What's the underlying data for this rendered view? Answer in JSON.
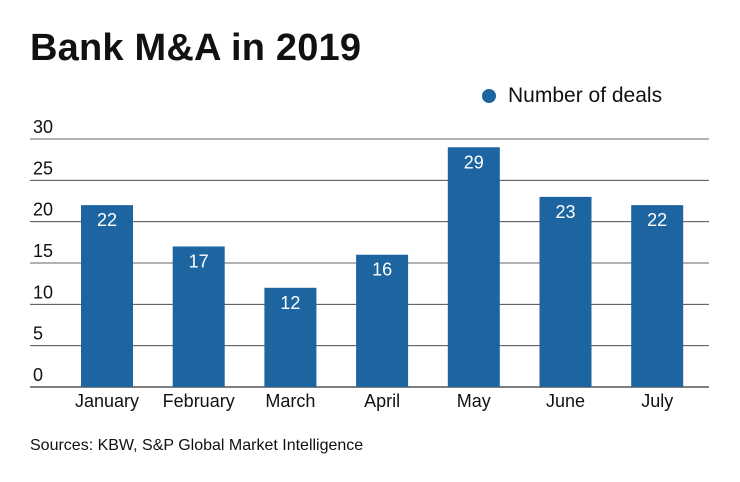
{
  "title": "Bank M&A in 2019",
  "source": "Sources: KBW, S&P Global Market Intelligence",
  "colors": {
    "bar": "#1d65a0",
    "grid": "#333333"
  },
  "chart_data": {
    "type": "bar",
    "title": "Bank M&A in 2019",
    "xlabel": "",
    "ylabel": "",
    "categories": [
      "January",
      "February",
      "March",
      "April",
      "May",
      "June",
      "July"
    ],
    "series": [
      {
        "name": "Number of deals",
        "values": [
          22,
          17,
          12,
          16,
          29,
          23,
          22
        ]
      }
    ],
    "ylim": [
      0,
      30
    ],
    "yticks": [
      0,
      5,
      10,
      15,
      20,
      25,
      30
    ],
    "grid": true,
    "legend": "top-right",
    "data_labels": true
  }
}
